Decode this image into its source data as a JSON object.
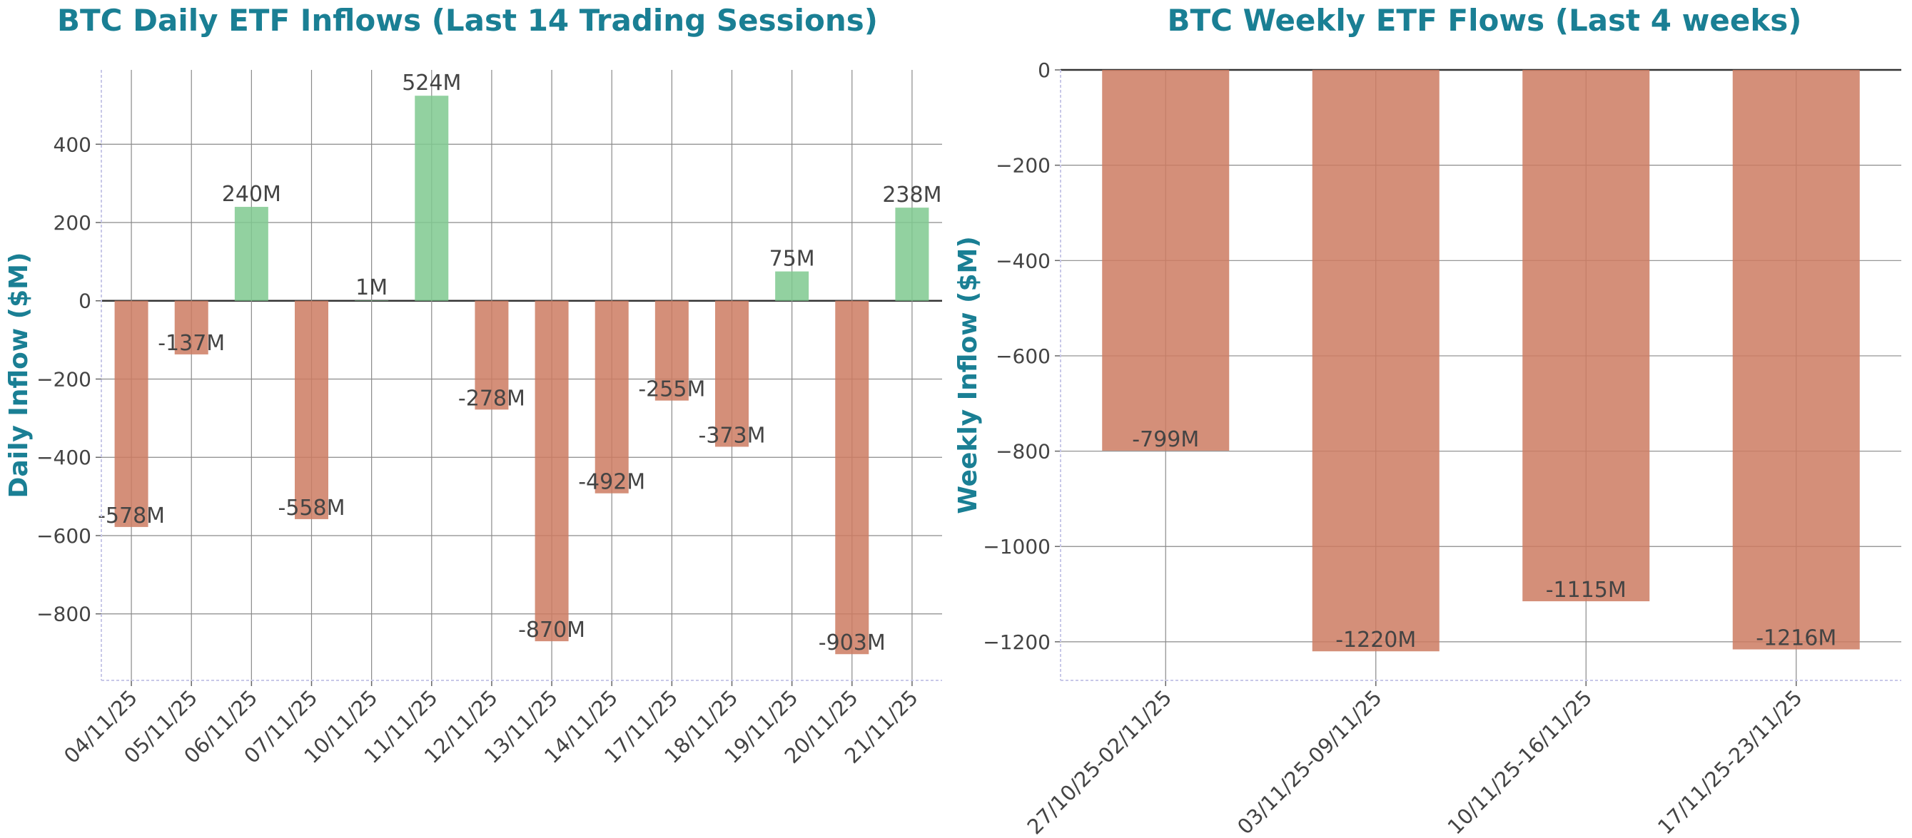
{
  "colors": {
    "title": "#1a7f94",
    "positive": "#7fc98f",
    "negative": "#cd7b62",
    "grid": "#8a8a8a",
    "text": "#444444"
  },
  "chart_data": [
    {
      "type": "bar",
      "title": "BTC Daily ETF Inflows (Last 14 Trading Sessions)",
      "xlabel": "",
      "ylabel": "Daily Inflow ($M)",
      "categories": [
        "04/11/25",
        "05/11/25",
        "06/11/25",
        "07/11/25",
        "10/11/25",
        "11/11/25",
        "12/11/25",
        "13/11/25",
        "14/11/25",
        "17/11/25",
        "18/11/25",
        "19/11/25",
        "20/11/25",
        "21/11/25"
      ],
      "values": [
        -578,
        -137,
        240,
        -558,
        1,
        524,
        -278,
        -870,
        -492,
        -255,
        -373,
        75,
        -903,
        238
      ],
      "data_labels": [
        "-578M",
        "-137M",
        "240M",
        "-558M",
        "1M",
        "524M",
        "-278M",
        "-870M",
        "-492M",
        "-255M",
        "-373M",
        "75M",
        "-903M",
        "238M"
      ],
      "ylim": [
        -970,
        590
      ],
      "yticks": [
        400,
        200,
        0,
        -200,
        -400,
        -600,
        -800
      ],
      "ytick_labels": [
        "400",
        "200",
        "0",
        "−200",
        "−400",
        "−600",
        "−800"
      ],
      "grid": true
    },
    {
      "type": "bar",
      "title": "BTC Weekly ETF Flows (Last 4 weeks)",
      "xlabel": "",
      "ylabel": "Weekly Inflow ($M)",
      "categories": [
        "27/10/25-02/11/25",
        "03/11/25-09/11/25",
        "10/11/25-16/11/25",
        "17/11/25-23/11/25"
      ],
      "values": [
        -799,
        -1220,
        -1115,
        -1216
      ],
      "data_labels": [
        "-799M",
        "-1220M",
        "-1115M",
        "-1216M"
      ],
      "ylim": [
        -1281,
        0
      ],
      "yticks": [
        0,
        -200,
        -400,
        -600,
        -800,
        -1000,
        -1200
      ],
      "ytick_labels": [
        "0",
        "−200",
        "−400",
        "−600",
        "−800",
        "−1000",
        "−1200"
      ],
      "grid": true
    }
  ]
}
